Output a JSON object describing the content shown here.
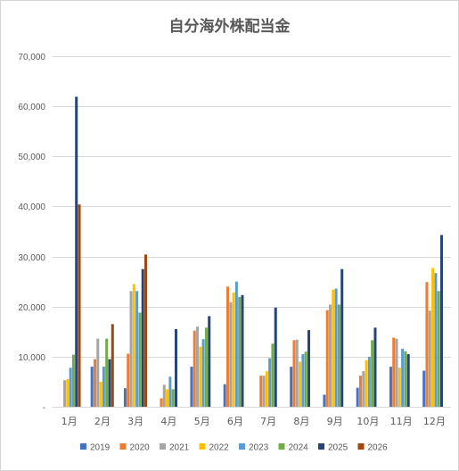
{
  "chart_data": {
    "type": "bar",
    "title": "自分海外株配当金",
    "xlabel": "",
    "ylabel": "",
    "ylim": [
      0,
      70000
    ],
    "yticks": [
      0,
      10000,
      20000,
      30000,
      40000,
      50000,
      60000,
      70000
    ],
    "ytick_labels": [
      "-",
      "10,000",
      "20,000",
      "30,000",
      "40,000",
      "50,000",
      "60,000",
      "70,000"
    ],
    "grid": true,
    "legend_position": "bottom",
    "categories": [
      "1月",
      "2月",
      "3月",
      "4月",
      "5月",
      "6月",
      "7月",
      "8月",
      "9月",
      "10月",
      "11月",
      "12月"
    ],
    "series": [
      {
        "name": "2019",
        "color": "#4472c4",
        "values": [
          0,
          8000,
          3700,
          0,
          8000,
          4500,
          0,
          8000,
          2400,
          3800,
          8000,
          7200
        ]
      },
      {
        "name": "2020",
        "color": "#ed7d31",
        "values": [
          0,
          9500,
          10600,
          1700,
          15200,
          24000,
          6200,
          13300,
          19300,
          6200,
          13800,
          24900
        ]
      },
      {
        "name": "2021",
        "color": "#a5a5a5",
        "values": [
          5300,
          13600,
          23100,
          4400,
          16000,
          20900,
          6200,
          13400,
          20400,
          7100,
          13600,
          19200
        ]
      },
      {
        "name": "2022",
        "color": "#ffc000",
        "values": [
          5500,
          5000,
          24500,
          3500,
          12000,
          22800,
          7100,
          9000,
          23400,
          9300,
          7800,
          27700
        ]
      },
      {
        "name": "2023",
        "color": "#5b9bd5",
        "values": [
          7800,
          8000,
          23100,
          6000,
          13500,
          25000,
          9700,
          10500,
          23600,
          10000,
          11600,
          26700
        ]
      },
      {
        "name": "2024",
        "color": "#70ad47",
        "values": [
          10400,
          13600,
          18800,
          3500,
          15800,
          21900,
          12600,
          11000,
          20400,
          13300,
          11100,
          23100
        ]
      },
      {
        "name": "2025",
        "color": "#264478",
        "values": [
          61900,
          9500,
          27500,
          15500,
          18100,
          22300,
          19800,
          15300,
          27500,
          15800,
          10500,
          34300
        ]
      },
      {
        "name": "2026",
        "color": "#9e480e",
        "values": [
          40400,
          16500,
          30400,
          0,
          0,
          0,
          0,
          0,
          0,
          0,
          0,
          0
        ]
      }
    ]
  }
}
